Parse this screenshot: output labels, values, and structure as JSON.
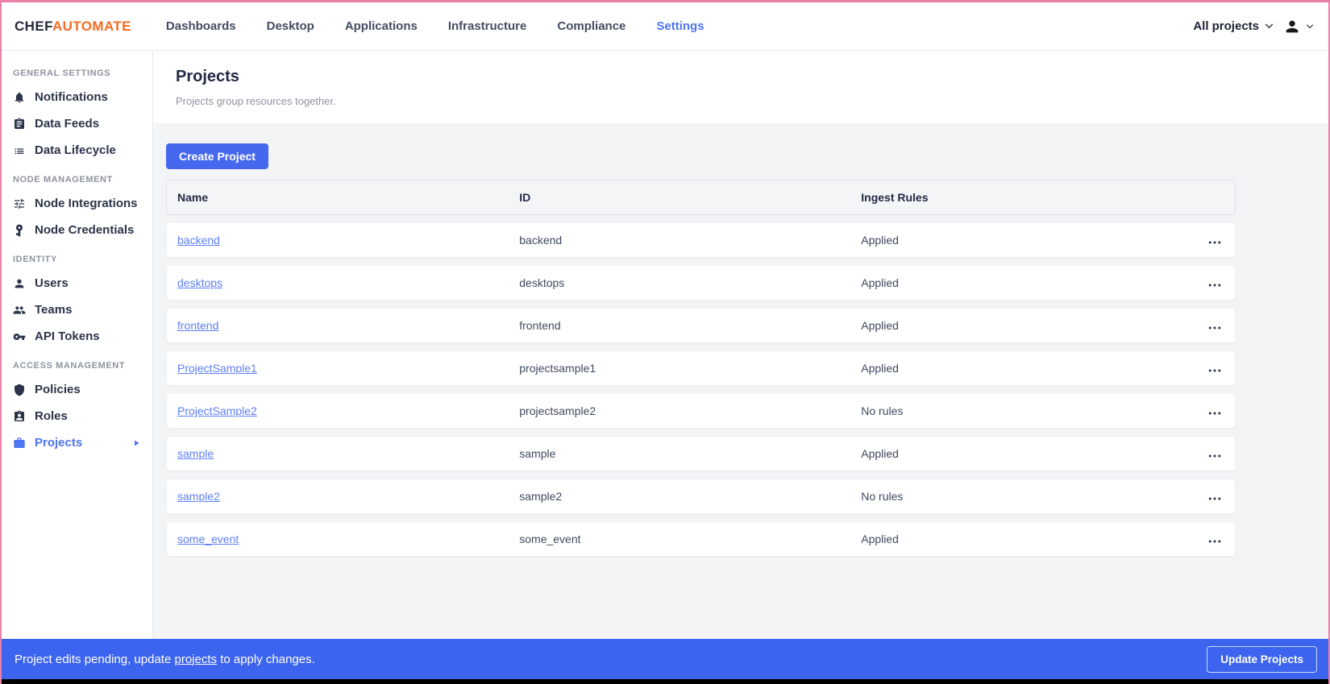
{
  "colors": {
    "frame_pink": "#ec7fa8",
    "brand_orange": "#f36c24",
    "accent_blue": "#4d74f2",
    "banner_blue": "#3c64ee",
    "page_bg": "#f3f4f6"
  },
  "topnav": {
    "brand_chef": "CHEF",
    "brand_automate": "AUTOMATE",
    "links": [
      {
        "label": "Dashboards",
        "active": false
      },
      {
        "label": "Desktop",
        "active": false
      },
      {
        "label": "Applications",
        "active": false
      },
      {
        "label": "Infrastructure",
        "active": false
      },
      {
        "label": "Compliance",
        "active": false
      },
      {
        "label": "Settings",
        "active": true
      }
    ],
    "projects_filter_label": "All projects"
  },
  "sidebar": {
    "sections": [
      {
        "header": "GENERAL SETTINGS",
        "items": [
          {
            "label": "Notifications",
            "icon": "bell-icon",
            "active": false
          },
          {
            "label": "Data Feeds",
            "icon": "clipboard-icon",
            "active": false
          },
          {
            "label": "Data Lifecycle",
            "icon": "list-icon",
            "active": false
          }
        ]
      },
      {
        "header": "NODE MANAGEMENT",
        "items": [
          {
            "label": "Node Integrations",
            "icon": "sliders-icon",
            "active": false
          },
          {
            "label": "Node Credentials",
            "icon": "key-vertical-icon",
            "active": false
          }
        ]
      },
      {
        "header": "IDENTITY",
        "items": [
          {
            "label": "Users",
            "icon": "user-icon",
            "active": false
          },
          {
            "label": "Teams",
            "icon": "users-icon",
            "active": false
          },
          {
            "label": "API Tokens",
            "icon": "key-icon",
            "active": false
          }
        ]
      },
      {
        "header": "ACCESS MANAGEMENT",
        "items": [
          {
            "label": "Policies",
            "icon": "shield-icon",
            "active": false
          },
          {
            "label": "Roles",
            "icon": "badge-icon",
            "active": false
          },
          {
            "label": "Projects",
            "icon": "briefcase-icon",
            "active": true
          }
        ]
      }
    ]
  },
  "main": {
    "title": "Projects",
    "subtitle": "Projects group resources together.",
    "create_button_label": "Create Project",
    "table": {
      "columns": [
        "Name",
        "ID",
        "Ingest Rules"
      ],
      "rows": [
        {
          "name": "backend",
          "id": "backend",
          "ingest": "Applied"
        },
        {
          "name": "desktops",
          "id": "desktops",
          "ingest": "Applied"
        },
        {
          "name": "frontend",
          "id": "frontend",
          "ingest": "Applied"
        },
        {
          "name": "ProjectSample1",
          "id": "projectsample1",
          "ingest": "Applied"
        },
        {
          "name": "ProjectSample2",
          "id": "projectsample2",
          "ingest": "No rules"
        },
        {
          "name": "sample",
          "id": "sample",
          "ingest": "Applied"
        },
        {
          "name": "sample2",
          "id": "sample2",
          "ingest": "No rules"
        },
        {
          "name": "some_event",
          "id": "some_event",
          "ingest": "Applied"
        }
      ]
    }
  },
  "banner": {
    "message_prefix": "Project edits pending, update",
    "link_text": "projects",
    "message_suffix": "to apply changes.",
    "button_label": "Update Projects"
  }
}
